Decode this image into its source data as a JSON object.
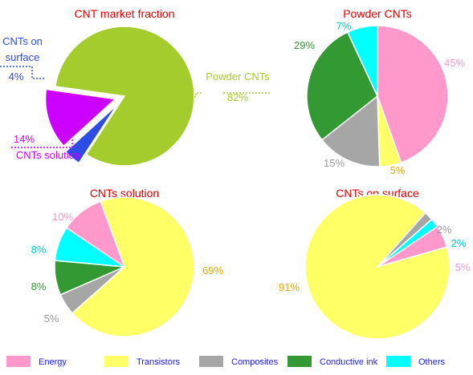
{
  "colors": {
    "title": "#e00000",
    "powder": "#a4cc2c",
    "surface": "#2d4de5",
    "solution": "#cc00ff",
    "energy": "#ff99cc",
    "transistors": "#ffff66",
    "composites": "#a6a6a6",
    "conductive_ink": "#339933",
    "others": "#00ffff"
  },
  "legend": {
    "items": [
      {
        "label": "Energy",
        "color": "#ff99cc"
      },
      {
        "label": "Transistors",
        "color": "#ffff66"
      },
      {
        "label": "Composites",
        "color": "#a6a6a6"
      },
      {
        "label": "Conductive ink",
        "color": "#339933"
      },
      {
        "label": "Others",
        "color": "#00ffff"
      }
    ]
  },
  "chart_data": [
    {
      "type": "pie",
      "title": "CNT market fraction",
      "slices": [
        {
          "label": "Powder CNTs",
          "value": 82,
          "display": "82%",
          "color": "#a4cc2c"
        },
        {
          "label": "CNTs on surface",
          "value": 4,
          "display": "4%",
          "color": "#2d4de5"
        },
        {
          "label": "CNTs solution",
          "value": 14,
          "display": "14%",
          "color": "#cc00ff"
        }
      ]
    },
    {
      "type": "pie",
      "title": "Powder CNTs",
      "slices": [
        {
          "label": "Energy",
          "value": 45,
          "display": "45%",
          "color": "#ff99cc"
        },
        {
          "label": "Transistors",
          "value": 5,
          "display": "5%",
          "color": "#ffff66"
        },
        {
          "label": "Composites",
          "value": 15,
          "display": "15%",
          "color": "#a6a6a6"
        },
        {
          "label": "Conductive ink",
          "value": 29,
          "display": "29%",
          "color": "#339933"
        },
        {
          "label": "Others",
          "value": 7,
          "display": "7%",
          "color": "#00ffff"
        }
      ]
    },
    {
      "type": "pie",
      "title": "CNTs solution",
      "slices": [
        {
          "label": "Transistors",
          "value": 69,
          "display": "69%",
          "color": "#ffff66"
        },
        {
          "label": "Composites",
          "value": 5,
          "display": "5%",
          "color": "#a6a6a6"
        },
        {
          "label": "Conductive ink",
          "value": 8,
          "display": "8%",
          "color": "#339933"
        },
        {
          "label": "Others",
          "value": 8,
          "display": "8%",
          "color": "#00ffff"
        },
        {
          "label": "Energy",
          "value": 10,
          "display": "10%",
          "color": "#ff99cc"
        }
      ]
    },
    {
      "type": "pie",
      "title": "CNTs on surface",
      "slices": [
        {
          "label": "Energy",
          "value": 5,
          "display": "5%",
          "color": "#ff99cc"
        },
        {
          "label": "Transistors",
          "value": 91,
          "display": "91%",
          "color": "#ffff66"
        },
        {
          "label": "Composites",
          "value": 2,
          "display": "2%",
          "color": "#a6a6a6"
        },
        {
          "label": "Others",
          "value": 2,
          "display": "2%",
          "color": "#00ffff"
        }
      ]
    }
  ]
}
